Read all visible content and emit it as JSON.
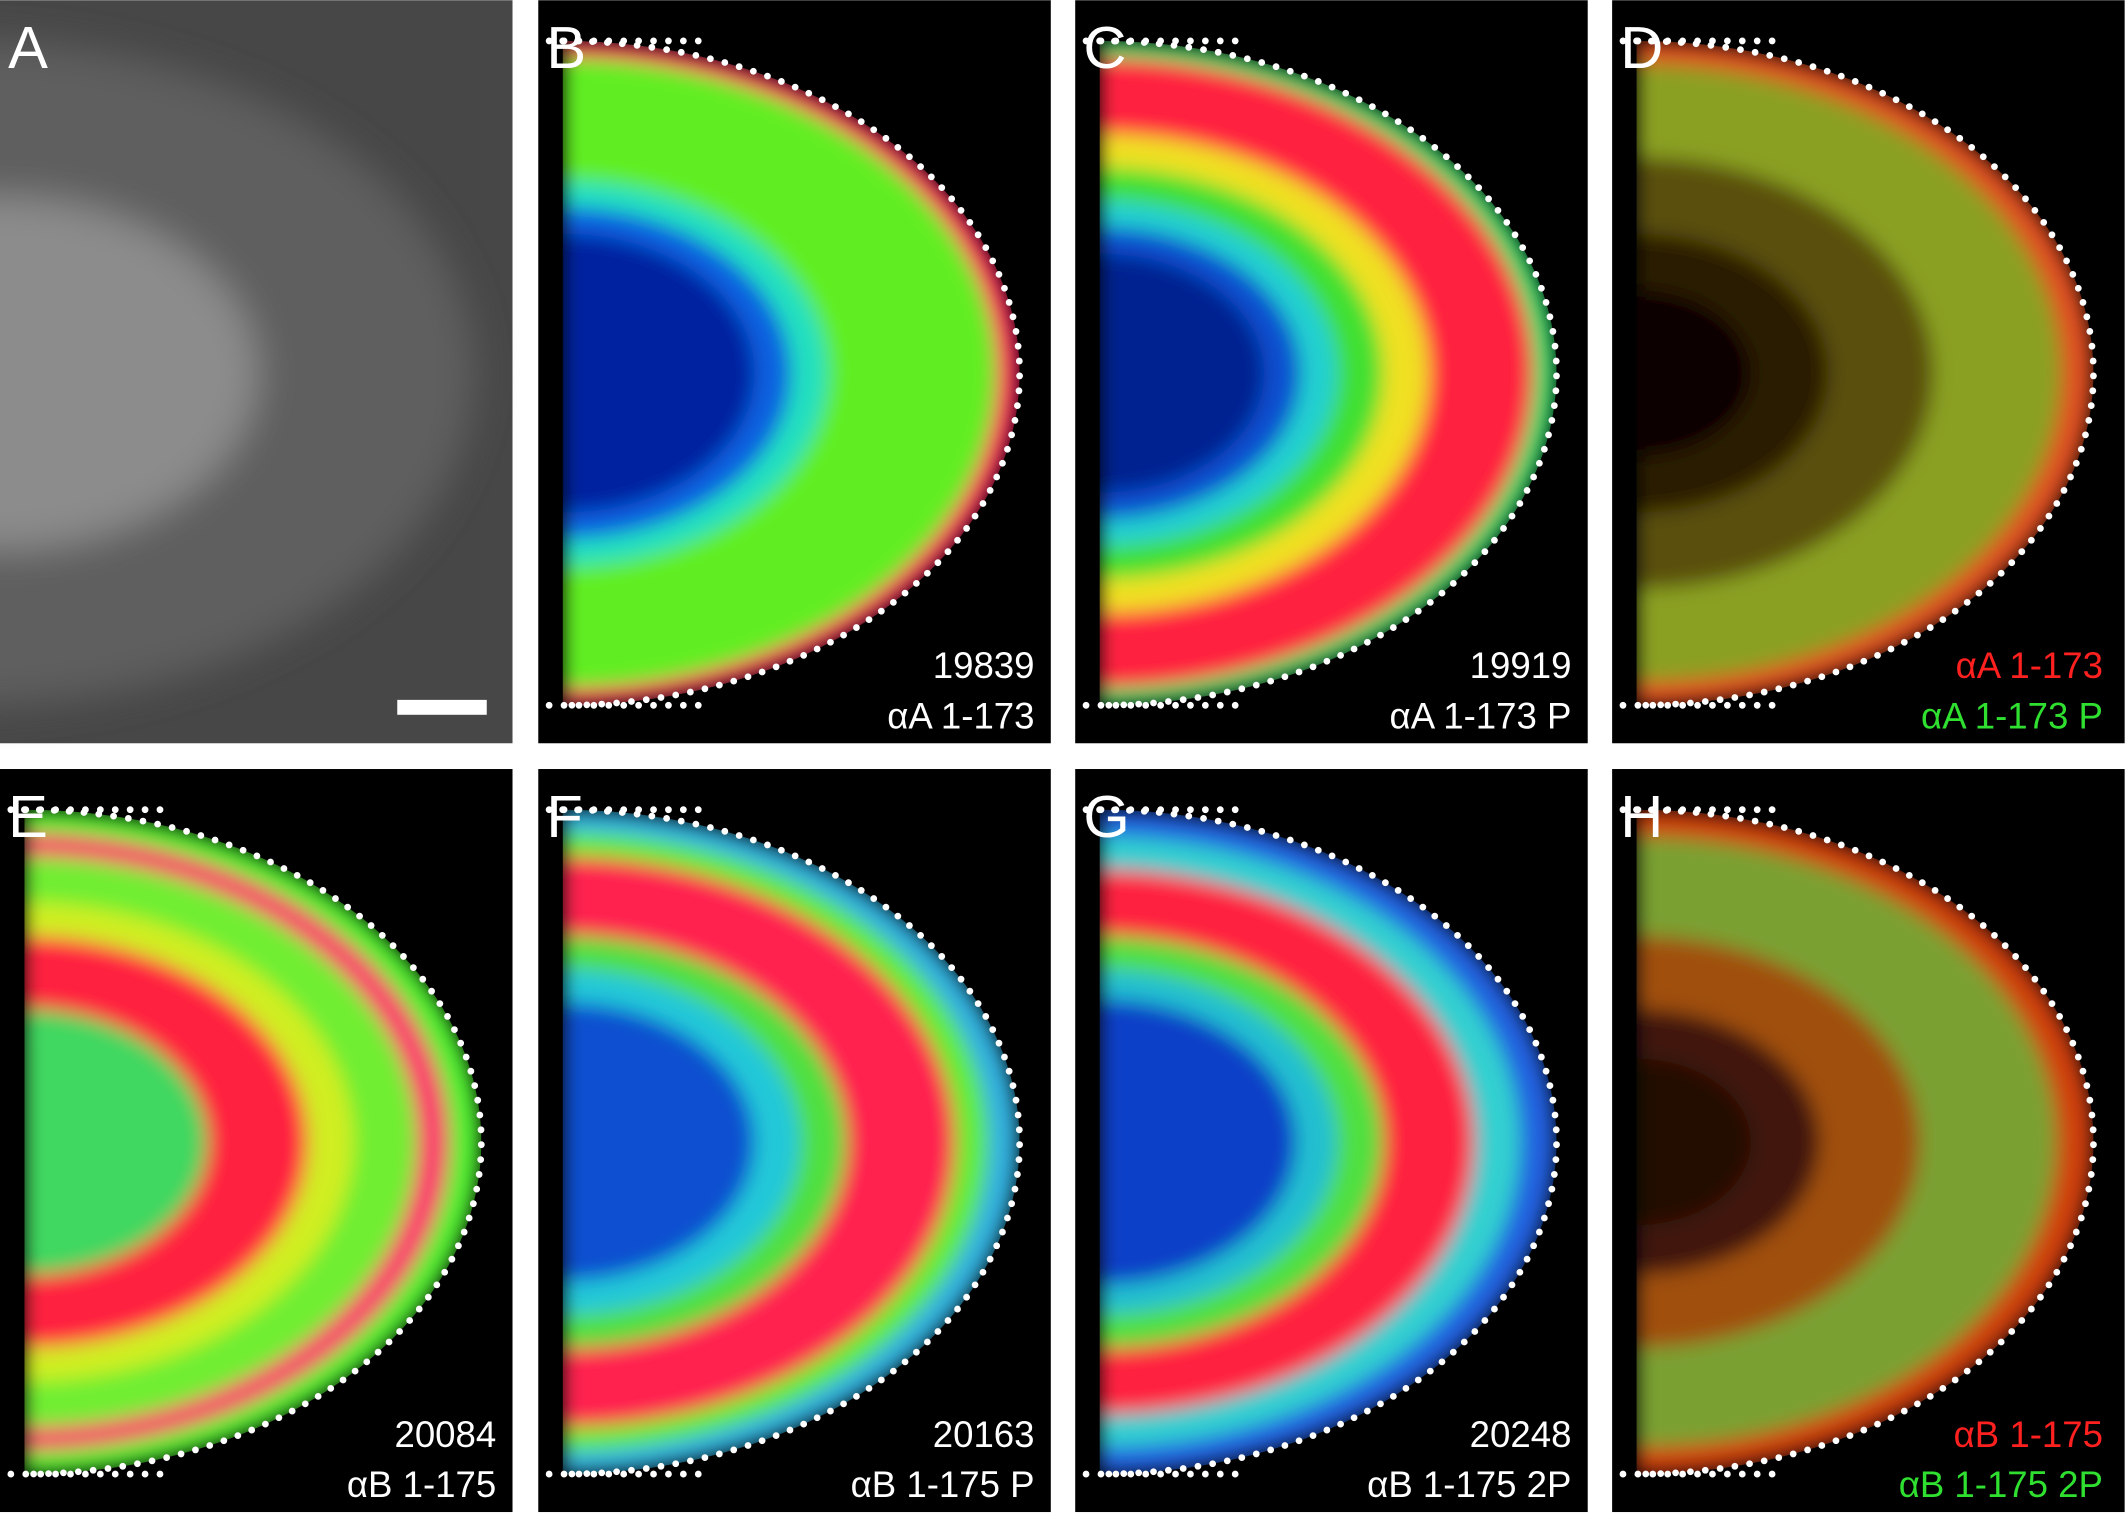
{
  "panels": [
    {
      "letter": "A"
    },
    {
      "letter": "B",
      "mass": 19839,
      "label": "αA 1-173"
    },
    {
      "letter": "C",
      "mass": 19919,
      "label": "αA 1-173 P"
    },
    {
      "letter": "D",
      "labels": [
        "αA 1-173",
        "αA 1-173 P"
      ]
    },
    {
      "letter": "E",
      "mass": 20084,
      "label": "αB 1-175"
    },
    {
      "letter": "F",
      "mass": 20163,
      "label": "αB 1-175 P"
    },
    {
      "letter": "G",
      "mass": 20248,
      "label": "αB 1-175 2P"
    },
    {
      "letter": "H",
      "labels": [
        "αB 1-175",
        "αB 1-175 2P"
      ]
    }
  ]
}
